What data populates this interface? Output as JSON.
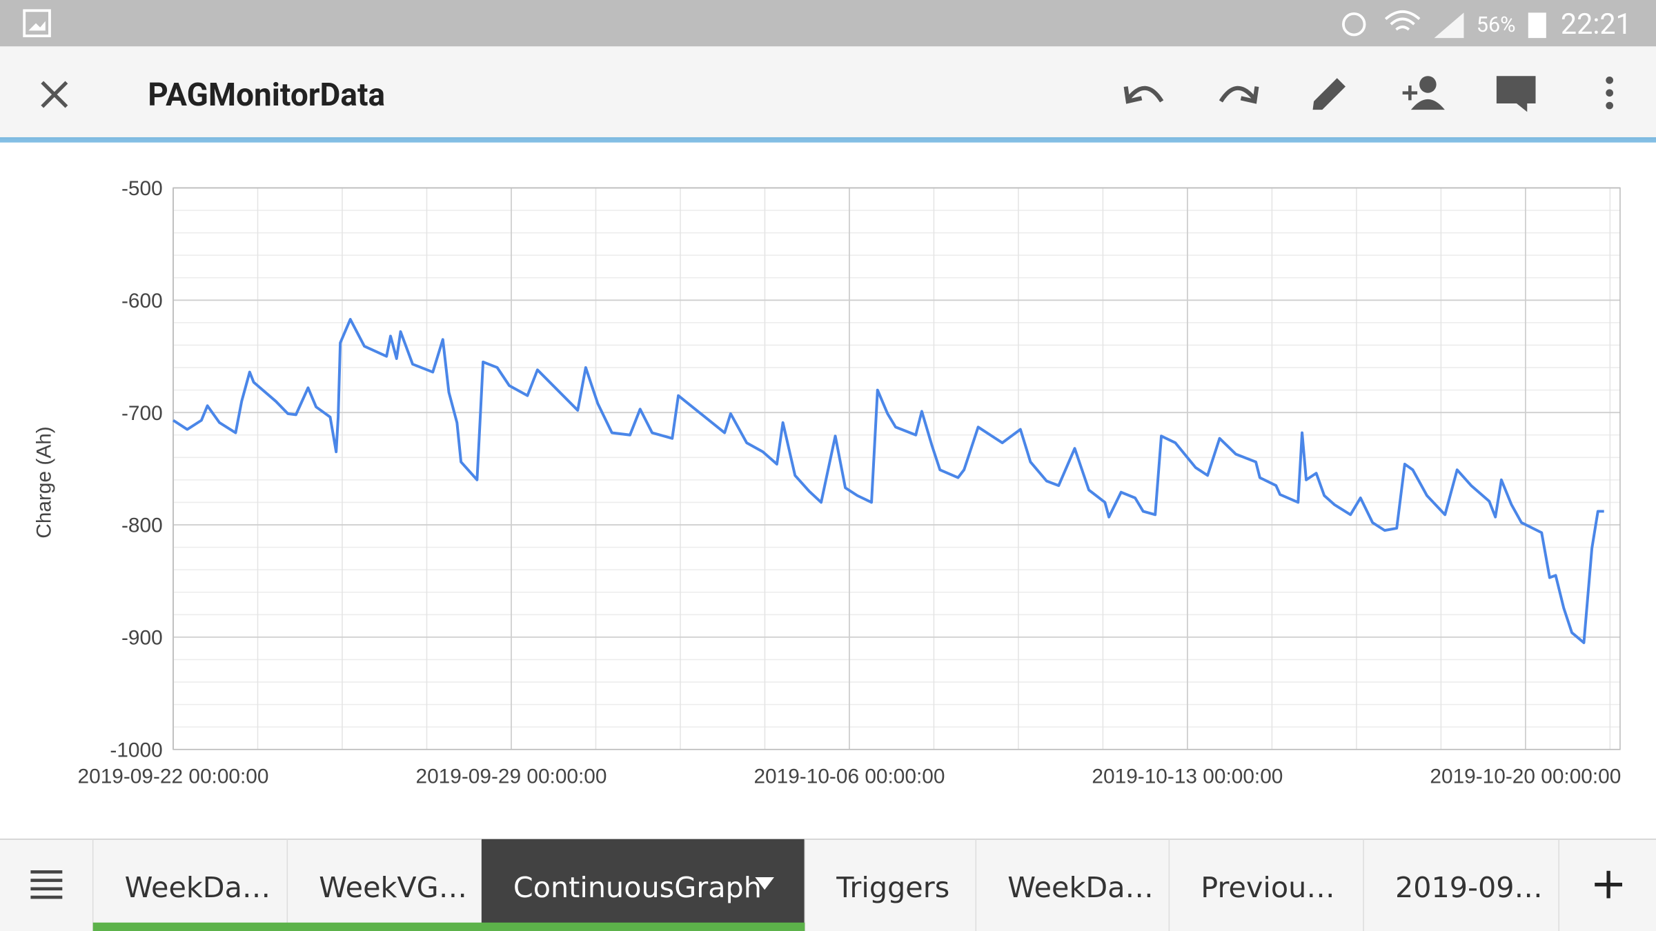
{
  "status_bar": {
    "battery": "56%",
    "time": "22:21"
  },
  "header": {
    "title": "PAGMonitorData"
  },
  "tabs": [
    "WeekDa…",
    "WeekVG…",
    "ContinuousGraph",
    "Triggers",
    "WeekDa…",
    "Previou…",
    "2019-09…"
  ],
  "chart_data": {
    "type": "line",
    "y_label": "Charge (Ah)",
    "color": "#4a86e8",
    "grid": true,
    "xlim": [
      "2019-09-22 00:00:00",
      "2019-10-21 23:00:00"
    ],
    "xticks": [
      "2019-09-22 00:00:00",
      "2019-09-29 00:00:00",
      "2019-10-06 00:00:00",
      "2019-10-13 00:00:00",
      "2019-10-20 00:00:00"
    ],
    "ylim": [
      -1000,
      -500
    ],
    "yticks": [
      -500,
      -600,
      -700,
      -800,
      -900,
      -1000
    ],
    "x": [
      "2019-09-22 00:00:00",
      "2019-09-22 07:00:00",
      "2019-09-22 14:00:00",
      "2019-09-22 17:00:00",
      "2019-09-22 23:00:00",
      "2019-09-23 07:00:00",
      "2019-09-23 10:00:00",
      "2019-09-23 14:00:00",
      "2019-09-23 16:00:00",
      "2019-09-24 03:00:00",
      "2019-09-24 09:00:00",
      "2019-09-24 13:00:00",
      "2019-09-24 19:00:00",
      "2019-09-24 23:00:00",
      "2019-09-25 06:00:00",
      "2019-09-25 09:00:00",
      "2019-09-25 10:00:00",
      "2019-09-25 11:00:00",
      "2019-09-25 16:00:00",
      "2019-09-25 23:00:00",
      "2019-09-26 10:00:00",
      "2019-09-26 12:00:00",
      "2019-09-26 15:00:00",
      "2019-09-26 17:00:00",
      "2019-09-26 23:00:00",
      "2019-09-27 09:00:00",
      "2019-09-27 14:00:00",
      "2019-09-27 17:00:00",
      "2019-09-27 21:00:00",
      "2019-09-27 23:00:00",
      "2019-09-28 07:00:00",
      "2019-09-28 10:00:00",
      "2019-09-28 17:00:00",
      "2019-09-28 23:00:00",
      "2019-09-29 08:00:00",
      "2019-09-29 13:00:00",
      "2019-09-30 09:00:00",
      "2019-09-30 13:00:00",
      "2019-09-30 19:00:00",
      "2019-10-01 02:00:00",
      "2019-10-01 11:00:00",
      "2019-10-01 16:00:00",
      "2019-10-01 22:00:00",
      "2019-10-02 08:00:00",
      "2019-10-02 11:00:00",
      "2019-10-03 10:00:00",
      "2019-10-03 13:00:00",
      "2019-10-03 21:00:00",
      "2019-10-04 05:00:00",
      "2019-10-04 12:00:00",
      "2019-10-04 15:00:00",
      "2019-10-04 21:00:00",
      "2019-10-05 04:00:00",
      "2019-10-05 10:00:00",
      "2019-10-05 17:00:00",
      "2019-10-05 22:00:00",
      "2019-10-06 04:00:00",
      "2019-10-06 11:00:00",
      "2019-10-06 14:00:00",
      "2019-10-06 19:00:00",
      "2019-10-06 23:00:00",
      "2019-10-07 09:00:00",
      "2019-10-07 12:00:00",
      "2019-10-07 17:00:00",
      "2019-10-07 21:00:00",
      "2019-10-08 06:00:00",
      "2019-10-08 09:00:00",
      "2019-10-08 16:00:00",
      "2019-10-09 04:00:00",
      "2019-10-09 13:00:00",
      "2019-10-09 18:00:00",
      "2019-10-10 02:00:00",
      "2019-10-10 08:00:00",
      "2019-10-10 16:00:00",
      "2019-10-10 23:00:00",
      "2019-10-11 07:00:00",
      "2019-10-11 09:00:00",
      "2019-10-11 15:00:00",
      "2019-10-11 22:00:00",
      "2019-10-12 02:00:00",
      "2019-10-12 08:00:00",
      "2019-10-12 11:00:00",
      "2019-10-12 18:00:00",
      "2019-10-13 04:00:00",
      "2019-10-13 10:00:00",
      "2019-10-13 16:00:00",
      "2019-10-14 00:00:00",
      "2019-10-14 10:00:00",
      "2019-10-14 12:00:00",
      "2019-10-14 20:00:00",
      "2019-10-14 22:00:00",
      "2019-10-15 07:00:00",
      "2019-10-15 09:00:00",
      "2019-10-15 11:00:00",
      "2019-10-15 16:00:00",
      "2019-10-15 20:00:00",
      "2019-10-16 01:00:00",
      "2019-10-16 09:00:00",
      "2019-10-16 14:00:00",
      "2019-10-16 20:00:00",
      "2019-10-17 02:00:00",
      "2019-10-17 08:00:00",
      "2019-10-17 12:00:00",
      "2019-10-17 16:00:00",
      "2019-10-17 23:00:00",
      "2019-10-18 08:00:00",
      "2019-10-18 14:00:00",
      "2019-10-18 21:00:00",
      "2019-10-19 06:00:00",
      "2019-10-19 09:00:00",
      "2019-10-19 12:00:00",
      "2019-10-19 17:00:00",
      "2019-10-19 22:00:00",
      "2019-10-20 08:00:00",
      "2019-10-20 12:00:00",
      "2019-10-20 15:00:00",
      "2019-10-20 19:00:00",
      "2019-10-20 23:00:00",
      "2019-10-21 05:00:00",
      "2019-10-21 09:00:00",
      "2019-10-21 12:00:00",
      "2019-10-21 15:00:00"
    ],
    "values": [
      -707,
      -715,
      -707,
      -694,
      -709,
      -718,
      -690,
      -664,
      -673,
      -690,
      -701,
      -702,
      -678,
      -695,
      -704,
      -735,
      -704,
      -638,
      -617,
      -641,
      -650,
      -632,
      -652,
      -628,
      -657,
      -664,
      -635,
      -682,
      -709,
      -744,
      -760,
      -655,
      -660,
      -676,
      -685,
      -662,
      -698,
      -660,
      -692,
      -718,
      -720,
      -697,
      -718,
      -723,
      -685,
      -718,
      -701,
      -727,
      -735,
      -746,
      -709,
      -756,
      -770,
      -780,
      -721,
      -767,
      -774,
      -780,
      -680,
      -701,
      -713,
      -720,
      -699,
      -729,
      -751,
      -758,
      -751,
      -713,
      -727,
      -715,
      -744,
      -761,
      -765,
      -732,
      -769,
      -780,
      -793,
      -771,
      -776,
      -788,
      -791,
      -721,
      -727,
      -749,
      -756,
      -723,
      -737,
      -744,
      -758,
      -765,
      -773,
      -780,
      -718,
      -760,
      -754,
      -774,
      -782,
      -791,
      -776,
      -798,
      -805,
      -803,
      -746,
      -751,
      -774,
      -791,
      -751,
      -765,
      -779,
      -793,
      -760,
      -782,
      -798,
      -807,
      -847,
      -845,
      -874,
      -896,
      -905,
      -821,
      -788,
      -788
    ]
  }
}
